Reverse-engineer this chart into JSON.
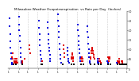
{
  "title": "Milwaukee Weather Evapotranspiration  vs Rain per Day  (Inches)",
  "title_fontsize": 3.0,
  "et_color": "#0000dd",
  "rain_color": "#dd0000",
  "other_color": "#000000",
  "bg_color": "#ffffff",
  "ylim": [
    0,
    0.3
  ],
  "yticks": [
    0.0,
    0.05,
    0.1,
    0.15,
    0.2,
    0.25,
    0.3
  ],
  "ytick_labels": [
    "0",
    ".05",
    ".10",
    ".15",
    ".20",
    ".25",
    ".30"
  ],
  "month_boundaries": [
    31,
    59,
    90,
    120,
    151,
    181,
    212,
    243,
    273,
    304,
    334
  ],
  "month_tick_positions": [
    1,
    32,
    60,
    91,
    121,
    152,
    182,
    213,
    244,
    274,
    305,
    335,
    365
  ],
  "month_tick_labels": [
    "1",
    "1",
    "1",
    "1",
    "1",
    "1",
    "1",
    "1",
    "1",
    "1",
    "1",
    "1",
    "1"
  ],
  "et_data": [
    [
      3,
      0.26
    ],
    [
      4,
      0.22
    ],
    [
      5,
      0.18
    ],
    [
      6,
      0.14
    ],
    [
      7,
      0.11
    ],
    [
      8,
      0.08
    ],
    [
      9,
      0.05
    ],
    [
      10,
      0.03
    ],
    [
      11,
      0.02
    ],
    [
      32,
      0.27
    ],
    [
      33,
      0.23
    ],
    [
      34,
      0.2
    ],
    [
      35,
      0.17
    ],
    [
      36,
      0.14
    ],
    [
      37,
      0.11
    ],
    [
      38,
      0.08
    ],
    [
      39,
      0.06
    ],
    [
      40,
      0.04
    ],
    [
      41,
      0.03
    ],
    [
      94,
      0.25
    ],
    [
      95,
      0.21
    ],
    [
      96,
      0.18
    ],
    [
      97,
      0.15
    ],
    [
      98,
      0.12
    ],
    [
      99,
      0.09
    ],
    [
      100,
      0.07
    ],
    [
      101,
      0.05
    ],
    [
      102,
      0.04
    ],
    [
      121,
      0.24
    ],
    [
      122,
      0.21
    ],
    [
      123,
      0.18
    ],
    [
      124,
      0.15
    ],
    [
      125,
      0.13
    ],
    [
      126,
      0.11
    ],
    [
      127,
      0.09
    ],
    [
      128,
      0.07
    ],
    [
      129,
      0.05
    ],
    [
      130,
      0.04
    ],
    [
      153,
      0.28
    ],
    [
      154,
      0.25
    ],
    [
      155,
      0.22
    ],
    [
      156,
      0.19
    ],
    [
      157,
      0.16
    ],
    [
      158,
      0.13
    ],
    [
      159,
      0.1
    ],
    [
      160,
      0.07
    ],
    [
      161,
      0.05
    ],
    [
      162,
      0.03
    ],
    [
      182,
      0.11
    ],
    [
      183,
      0.09
    ],
    [
      184,
      0.07
    ],
    [
      185,
      0.05
    ],
    [
      186,
      0.04
    ],
    [
      187,
      0.03
    ],
    [
      214,
      0.23
    ],
    [
      215,
      0.2
    ],
    [
      216,
      0.17
    ],
    [
      217,
      0.14
    ],
    [
      218,
      0.12
    ],
    [
      219,
      0.1
    ],
    [
      220,
      0.08
    ],
    [
      221,
      0.06
    ],
    [
      222,
      0.05
    ],
    [
      223,
      0.04
    ],
    [
      244,
      0.22
    ],
    [
      245,
      0.19
    ],
    [
      246,
      0.16
    ],
    [
      247,
      0.13
    ],
    [
      248,
      0.1
    ],
    [
      249,
      0.08
    ],
    [
      250,
      0.06
    ],
    [
      251,
      0.04
    ],
    [
      252,
      0.03
    ],
    [
      275,
      0.03
    ],
    [
      276,
      0.04
    ],
    [
      277,
      0.05
    ],
    [
      278,
      0.04
    ],
    [
      279,
      0.03
    ],
    [
      306,
      0.04
    ],
    [
      307,
      0.03
    ],
    [
      308,
      0.03
    ],
    [
      336,
      0.03
    ],
    [
      337,
      0.02
    ],
    [
      338,
      0.02
    ]
  ],
  "rain_data": [
    [
      12,
      0.06
    ],
    [
      13,
      0.08
    ],
    [
      14,
      0.05
    ],
    [
      18,
      0.03
    ],
    [
      19,
      0.04
    ],
    [
      20,
      0.05
    ],
    [
      21,
      0.04
    ],
    [
      22,
      0.03
    ],
    [
      23,
      0.03
    ],
    [
      25,
      0.04
    ],
    [
      26,
      0.05
    ],
    [
      27,
      0.04
    ],
    [
      28,
      0.03
    ],
    [
      42,
      0.04
    ],
    [
      43,
      0.03
    ],
    [
      50,
      0.05
    ],
    [
      65,
      0.12
    ],
    [
      66,
      0.1
    ],
    [
      67,
      0.08
    ],
    [
      104,
      0.04
    ],
    [
      170,
      0.12
    ],
    [
      171,
      0.1
    ],
    [
      172,
      0.08
    ],
    [
      173,
      0.06
    ],
    [
      195,
      0.05
    ],
    [
      196,
      0.06
    ],
    [
      197,
      0.08
    ],
    [
      198,
      0.07
    ],
    [
      199,
      0.06
    ],
    [
      200,
      0.05
    ],
    [
      201,
      0.04
    ],
    [
      225,
      0.05
    ],
    [
      226,
      0.04
    ],
    [
      227,
      0.05
    ],
    [
      228,
      0.06
    ],
    [
      229,
      0.05
    ],
    [
      230,
      0.04
    ],
    [
      254,
      0.05
    ],
    [
      255,
      0.06
    ],
    [
      256,
      0.08
    ],
    [
      257,
      0.09
    ],
    [
      258,
      0.1
    ],
    [
      259,
      0.11
    ],
    [
      260,
      0.1
    ],
    [
      261,
      0.09
    ],
    [
      262,
      0.08
    ],
    [
      263,
      0.07
    ],
    [
      264,
      0.06
    ],
    [
      265,
      0.05
    ],
    [
      280,
      0.05
    ],
    [
      281,
      0.04
    ],
    [
      282,
      0.04
    ],
    [
      283,
      0.04
    ],
    [
      284,
      0.04
    ],
    [
      285,
      0.03
    ],
    [
      286,
      0.03
    ],
    [
      309,
      0.06
    ],
    [
      310,
      0.05
    ],
    [
      311,
      0.04
    ],
    [
      312,
      0.06
    ],
    [
      313,
      0.05
    ],
    [
      338,
      0.04
    ],
    [
      339,
      0.03
    ],
    [
      340,
      0.04
    ],
    [
      341,
      0.05
    ],
    [
      342,
      0.04
    ],
    [
      343,
      0.03
    ],
    [
      350,
      0.04
    ],
    [
      351,
      0.03
    ],
    [
      352,
      0.04
    ]
  ],
  "black_data": [
    [
      15,
      0.02
    ],
    [
      16,
      0.02
    ],
    [
      17,
      0.02
    ],
    [
      24,
      0.02
    ],
    [
      44,
      0.02
    ],
    [
      103,
      0.02
    ],
    [
      105,
      0.02
    ],
    [
      169,
      0.02
    ],
    [
      194,
      0.02
    ],
    [
      202,
      0.02
    ],
    [
      224,
      0.02
    ],
    [
      231,
      0.02
    ],
    [
      253,
      0.02
    ],
    [
      266,
      0.02
    ],
    [
      279,
      0.02
    ],
    [
      287,
      0.02
    ],
    [
      308,
      0.02
    ],
    [
      314,
      0.02
    ],
    [
      337,
      0.02
    ],
    [
      344,
      0.02
    ],
    [
      348,
      0.02
    ],
    [
      353,
      0.02
    ],
    [
      354,
      0.02
    ],
    [
      355,
      0.02
    ],
    [
      356,
      0.02
    ],
    [
      357,
      0.02
    ],
    [
      358,
      0.02
    ],
    [
      359,
      0.02
    ],
    [
      360,
      0.02
    ],
    [
      361,
      0.02
    ],
    [
      362,
      0.02
    ],
    [
      363,
      0.02
    ],
    [
      364,
      0.02
    ]
  ]
}
